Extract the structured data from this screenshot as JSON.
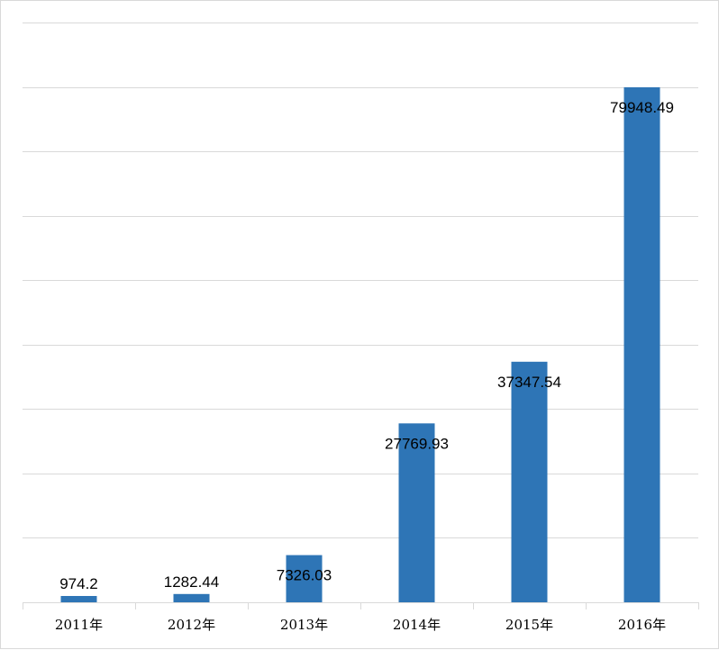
{
  "chart_data": {
    "type": "bar",
    "categories": [
      "2011年",
      "2012年",
      "2013年",
      "2014年",
      "2015年",
      "2016年"
    ],
    "values": [
      974.2,
      1282.44,
      7326.03,
      27769.93,
      37347.54,
      79948.49
    ],
    "data_labels": [
      "974.2",
      "1282.44",
      "7326.03",
      "27769.93",
      "37347.54",
      "79948.49"
    ],
    "ylim": [
      0,
      90000
    ],
    "grid": true,
    "bar_color": "#2e75b6",
    "grid_color": "#d9d9d9"
  }
}
